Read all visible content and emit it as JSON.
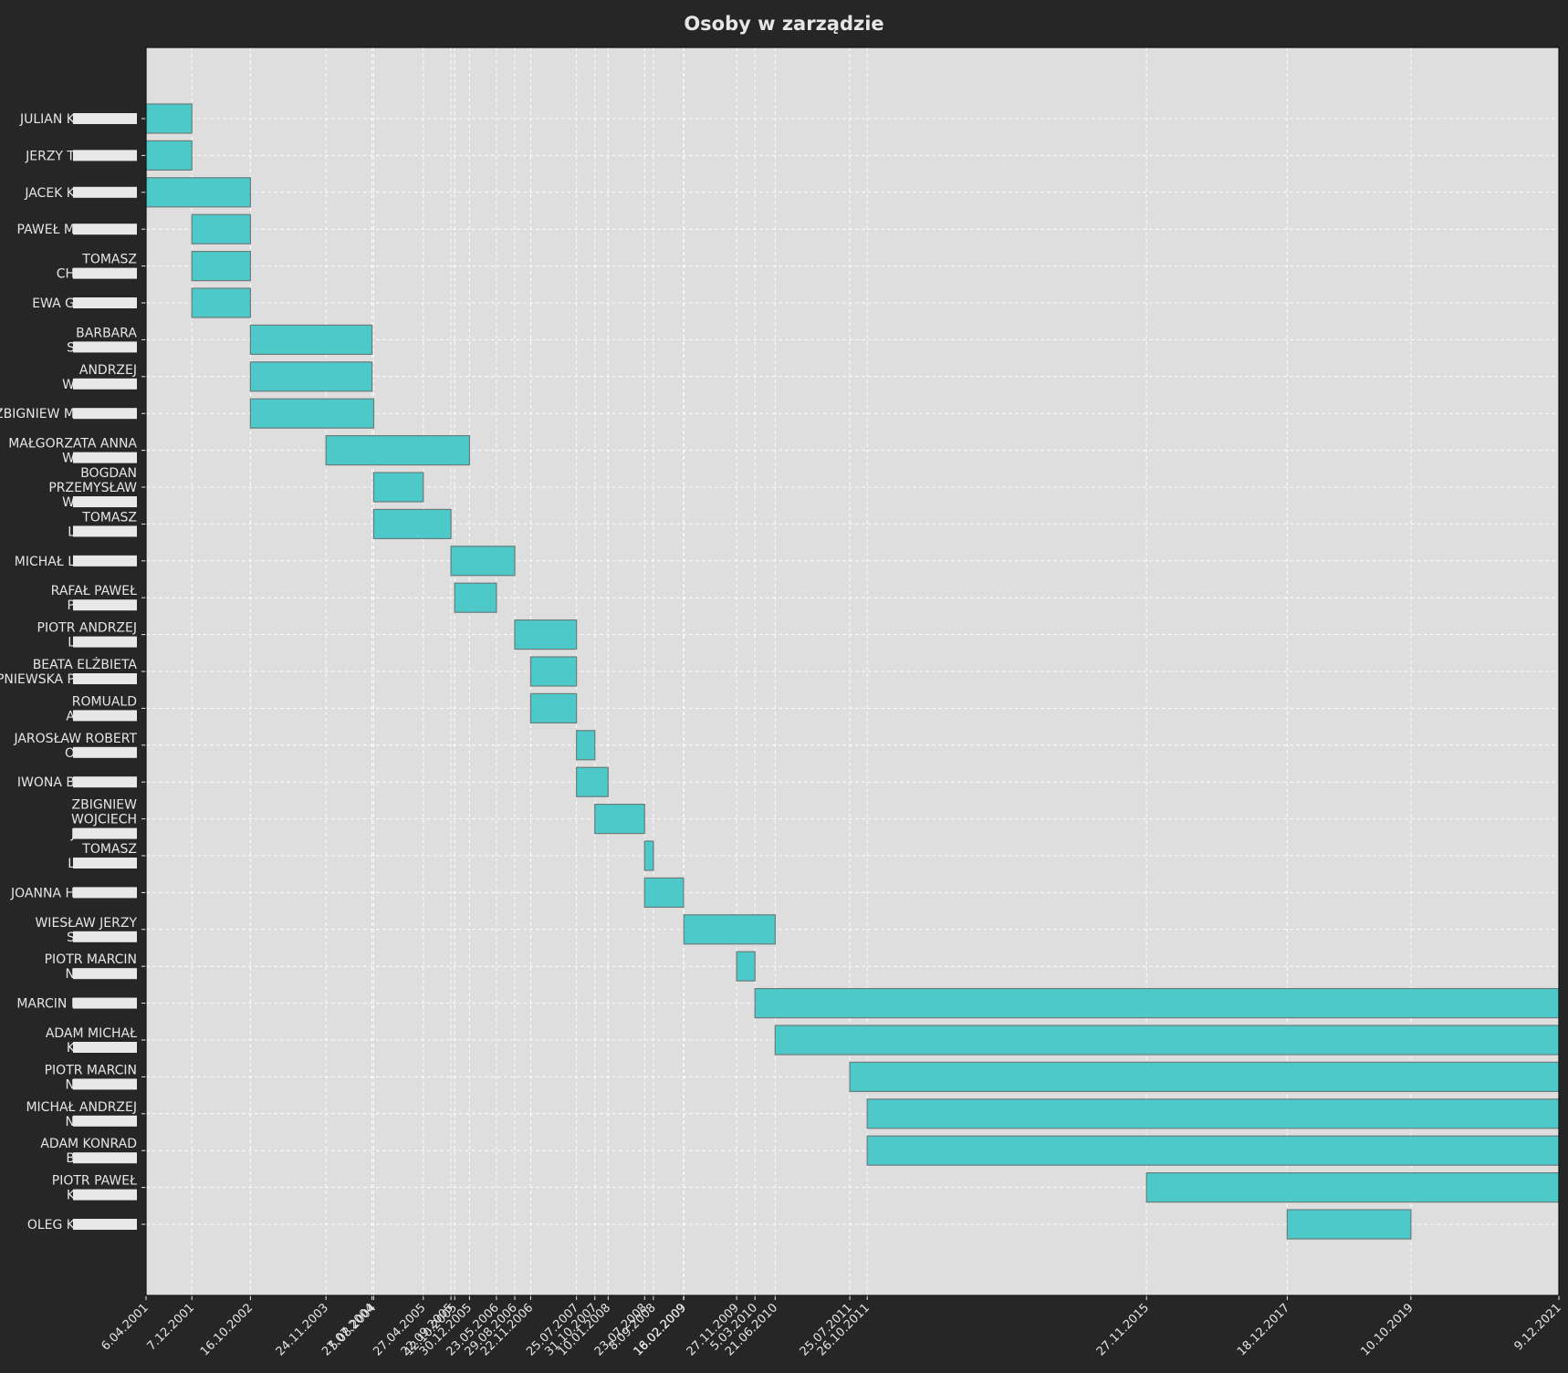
{
  "chart_data": {
    "type": "gantt",
    "title": "Osoby w zarządzie",
    "xlabel": "",
    "ylabel": "",
    "x_range": [
      "2001-04-06",
      "2021-12-09"
    ],
    "grid": true,
    "colors": {
      "bar_fill": "#4cc9c8",
      "bar_edge": "#6a7d7d",
      "plot_bg": "#dedede",
      "figure_bg": "#262626",
      "grid": "#ffffff",
      "text": "#e6e6e6",
      "name_mask": "#e8e8e8"
    },
    "x_ticks": [
      {
        "label": "6.04.2001",
        "date": "2001-04-06"
      },
      {
        "label": "7.12.2001",
        "date": "2001-12-07"
      },
      {
        "label": "16.10.2002",
        "date": "2002-10-16"
      },
      {
        "label": "24.11.2003",
        "date": "2003-11-24"
      },
      {
        "label": "27.07.2004",
        "date": "2004-07-27"
      },
      {
        "label": "5.08.2004",
        "date": "2004-08-05"
      },
      {
        "label": "27.04.2005",
        "date": "2005-04-27"
      },
      {
        "label": "22.09.2005",
        "date": "2005-09-22"
      },
      {
        "label": "12.10.2005",
        "date": "2005-10-12"
      },
      {
        "label": "30.12.2005",
        "date": "2005-12-30"
      },
      {
        "label": "23.05.2006",
        "date": "2006-05-23"
      },
      {
        "label": "29.08.2006",
        "date": "2006-08-29"
      },
      {
        "label": "22.11.2006",
        "date": "2006-11-22"
      },
      {
        "label": "25.07.2007",
        "date": "2007-07-25"
      },
      {
        "label": "31.10.2007",
        "date": "2007-10-31"
      },
      {
        "label": "10.01.2008",
        "date": "2008-01-10"
      },
      {
        "label": "23.07.2008",
        "date": "2008-07-23"
      },
      {
        "label": "8.09.2008",
        "date": "2008-09-08"
      },
      {
        "label": "16.02.2009",
        "date": "2009-02-16"
      },
      {
        "label": "18.02.2009",
        "date": "2009-02-18"
      },
      {
        "label": "27.11.2009",
        "date": "2009-11-27"
      },
      {
        "label": "5.03.2010",
        "date": "2010-03-05"
      },
      {
        "label": "21.06.2010",
        "date": "2010-06-21"
      },
      {
        "label": "25.07.2011",
        "date": "2011-07-25"
      },
      {
        "label": "26.10.2011",
        "date": "2011-10-26"
      },
      {
        "label": "27.11.2015",
        "date": "2015-11-27"
      },
      {
        "label": "18.12.2017",
        "date": "2017-12-18"
      },
      {
        "label": "10.10.2019",
        "date": "2019-10-10"
      },
      {
        "label": "9.12.2021",
        "date": "2021-12-09"
      }
    ],
    "series": [
      {
        "label": [
          "JULIAN K"
        ],
        "start": "2001-04-06",
        "end": "2001-12-07"
      },
      {
        "label": [
          "JERZY T"
        ],
        "start": "2001-04-06",
        "end": "2001-12-07"
      },
      {
        "label": [
          "JACEK K"
        ],
        "start": "2001-04-06",
        "end": "2002-10-16"
      },
      {
        "label": [
          "PAWEŁ M"
        ],
        "start": "2001-12-07",
        "end": "2002-10-16"
      },
      {
        "label": [
          "TOMASZ",
          "CH"
        ],
        "start": "2001-12-07",
        "end": "2002-10-16"
      },
      {
        "label": [
          "EWA G"
        ],
        "start": "2001-12-07",
        "end": "2002-10-16"
      },
      {
        "label": [
          "BARBARA",
          "S"
        ],
        "start": "2002-10-16",
        "end": "2004-07-27"
      },
      {
        "label": [
          "ANDRZEJ",
          "W"
        ],
        "start": "2002-10-16",
        "end": "2004-07-27"
      },
      {
        "label": [
          "ZBIGNIEW M"
        ],
        "start": "2002-10-16",
        "end": "2004-08-05"
      },
      {
        "label": [
          "MAŁGORZATA ANNA",
          "W"
        ],
        "start": "2003-11-24",
        "end": "2005-12-30"
      },
      {
        "label": [
          "BOGDAN",
          "PRZEMYSŁAW",
          "W"
        ],
        "start": "2004-08-05",
        "end": "2005-04-27"
      },
      {
        "label": [
          "TOMASZ",
          "L"
        ],
        "start": "2004-08-05",
        "end": "2005-09-22"
      },
      {
        "label": [
          "MICHAŁ L"
        ],
        "start": "2005-09-22",
        "end": "2006-08-29"
      },
      {
        "label": [
          "RAFAŁ PAWEŁ",
          "P"
        ],
        "start": "2005-10-12",
        "end": "2006-05-23"
      },
      {
        "label": [
          "PIOTR ANDRZEJ",
          "L"
        ],
        "start": "2006-08-29",
        "end": "2007-07-25"
      },
      {
        "label": [
          "BEATA ELŻBIETA",
          "PNIEWSKA P"
        ],
        "start": "2006-11-22",
        "end": "2007-07-25"
      },
      {
        "label": [
          "ROMUALD",
          "A"
        ],
        "start": "2006-11-22",
        "end": "2007-07-25"
      },
      {
        "label": [
          "JAROSŁAW ROBERT",
          "O"
        ],
        "start": "2007-07-25",
        "end": "2007-10-31"
      },
      {
        "label": [
          "IWONA B"
        ],
        "start": "2007-07-25",
        "end": "2008-01-10"
      },
      {
        "label": [
          "ZBIGNIEW",
          "WOJCIECH",
          "J"
        ],
        "start": "2007-10-31",
        "end": "2008-07-23"
      },
      {
        "label": [
          "TOMASZ",
          "L"
        ],
        "start": "2008-07-23",
        "end": "2008-09-08"
      },
      {
        "label": [
          "JOANNA H"
        ],
        "start": "2008-07-23",
        "end": "2009-02-16"
      },
      {
        "label": [
          "WIESŁAW JERZY",
          "S"
        ],
        "start": "2009-02-18",
        "end": "2010-06-21"
      },
      {
        "label": [
          "PIOTR MARCIN",
          "N"
        ],
        "start": "2009-11-27",
        "end": "2010-03-05"
      },
      {
        "label": [
          "MARCIN I"
        ],
        "start": "2010-03-05",
        "end": "2021-12-09"
      },
      {
        "label": [
          "ADAM MICHAŁ",
          "K"
        ],
        "start": "2010-06-21",
        "end": "2021-12-09"
      },
      {
        "label": [
          "PIOTR MARCIN",
          "N"
        ],
        "start": "2011-07-25",
        "end": "2021-12-09"
      },
      {
        "label": [
          "MICHAŁ ANDRZEJ",
          "N"
        ],
        "start": "2011-10-26",
        "end": "2021-12-09"
      },
      {
        "label": [
          "ADAM KONRAD",
          "B"
        ],
        "start": "2011-10-26",
        "end": "2021-12-09"
      },
      {
        "label": [
          "PIOTR PAWEŁ",
          "K"
        ],
        "start": "2015-11-27",
        "end": "2021-12-09"
      },
      {
        "label": [
          "OLEG K"
        ],
        "start": "2017-12-18",
        "end": "2019-10-10"
      }
    ]
  }
}
